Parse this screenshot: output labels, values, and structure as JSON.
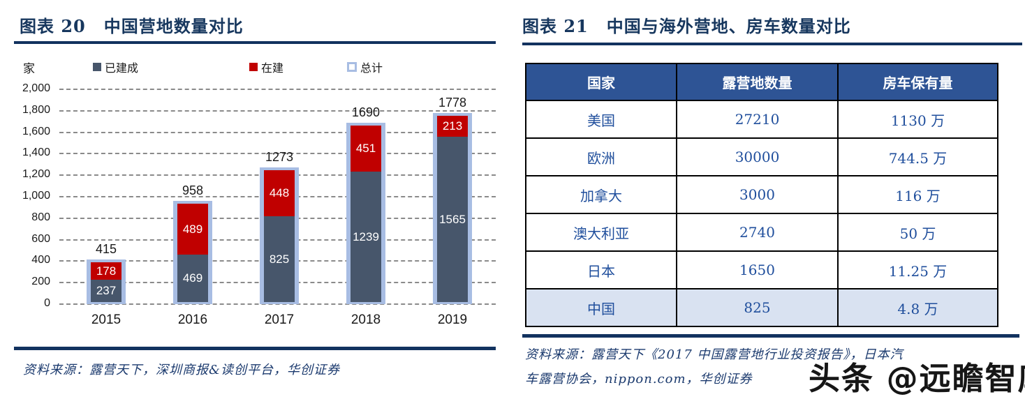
{
  "accent_colors": {
    "navy": "#17375E",
    "built_slate": "#47566B",
    "under_construction_red": "#C00000",
    "total_light_blue": "#A8BDE3",
    "table_header_blue": "#2E5495",
    "table_text_blue": "#1F4E9C",
    "highlight_row_blue": "#D9E2F1"
  },
  "left_figure": {
    "title_label": "图表 20",
    "title_text": "中国营地数量对比",
    "unit": "家",
    "legend": [
      {
        "label": "已建成",
        "color": "#47566B",
        "style": "filled"
      },
      {
        "label": "在建",
        "color": "#C00000",
        "style": "filled"
      },
      {
        "label": "总计",
        "color": "#A8BDE3",
        "style": "outline"
      }
    ],
    "source": "资料来源：露营天下，深圳商报&读创平台，华创证券"
  },
  "right_figure": {
    "title_label": "图表 21",
    "title_text": "中国与海外营地、房车数量对比",
    "table": {
      "headers": [
        "国家",
        "露营地数量",
        "房车保有量"
      ],
      "rows": [
        [
          "美国",
          "27210",
          "1130 万"
        ],
        [
          "欧洲",
          "30000",
          "744.5 万"
        ],
        [
          "加拿大",
          "3000",
          "116 万"
        ],
        [
          "澳大利亚",
          "2740",
          "50 万"
        ],
        [
          "日本",
          "1650",
          "11.25 万"
        ],
        [
          "中国",
          "825",
          "4.8 万"
        ]
      ],
      "highlight_row_index": 5
    },
    "source_line1": "资料来源：露营天下《2017 中国露营地行业投资报告》，日本汽",
    "source_line2": "车露营协会，nippon.com，华创证券",
    "watermark": "头条 @远瞻智库"
  },
  "chart_data": [
    {
      "type": "bar",
      "stacked": true,
      "title": "图表 20 中国营地数量对比",
      "unit": "家",
      "categories": [
        "2015",
        "2016",
        "2017",
        "2018",
        "2019"
      ],
      "series": [
        {
          "name": "已建成",
          "color": "#47566B",
          "values": [
            237,
            469,
            825,
            1239,
            1565
          ]
        },
        {
          "name": "在建",
          "color": "#C00000",
          "values": [
            178,
            489,
            448,
            451,
            213
          ]
        },
        {
          "name": "总计",
          "color": "#A8BDE3",
          "role": "outline-total",
          "values": [
            415,
            958,
            1273,
            1690,
            1778
          ]
        }
      ],
      "ylim": [
        0,
        2000
      ],
      "ytick_step": 200,
      "grid": "dashed-horizontal",
      "legend_position": "top",
      "xlabel": "",
      "ylabel": "家"
    },
    {
      "type": "table",
      "title": "图表 21 中国与海外营地、房车数量对比",
      "columns": [
        "国家",
        "露营地数量",
        "房车保有量"
      ],
      "rows": [
        [
          "美国",
          "27210",
          "1130 万"
        ],
        [
          "欧洲",
          "30000",
          "744.5 万"
        ],
        [
          "加拿大",
          "3000",
          "116 万"
        ],
        [
          "澳大利亚",
          "2740",
          "50 万"
        ],
        [
          "日本",
          "1650",
          "11.25 万"
        ],
        [
          "中国",
          "825",
          "4.8 万"
        ]
      ],
      "highlight_row": "中国"
    }
  ]
}
